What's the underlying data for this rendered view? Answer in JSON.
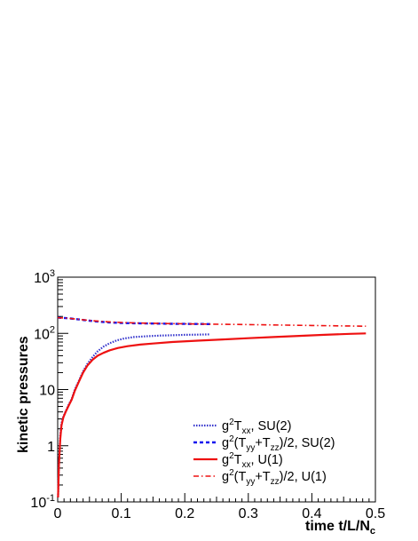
{
  "chart_data": {
    "type": "line",
    "xlabel": "time t/L/N",
    "xlabel_sub": "c",
    "ylabel": "kinetic pressures",
    "xlim": [
      0,
      0.5
    ],
    "ylim": [
      0.1,
      1000
    ],
    "y_scale": "log",
    "x_ticks": [
      {
        "value": 0,
        "label": "0"
      },
      {
        "value": 0.1,
        "label": "0.1"
      },
      {
        "value": 0.2,
        "label": "0.2"
      },
      {
        "value": 0.3,
        "label": "0.3"
      },
      {
        "value": 0.4,
        "label": "0.4"
      },
      {
        "value": 0.5,
        "label": "0.5"
      }
    ],
    "y_ticks": [
      {
        "value": 0.1,
        "label": "10",
        "exp": "-1"
      },
      {
        "value": 1,
        "label": "1",
        "exp": ""
      },
      {
        "value": 10,
        "label": "10",
        "exp": ""
      },
      {
        "value": 100,
        "label": "10",
        "exp": "2"
      },
      {
        "value": 1000,
        "label": "10",
        "exp": "3"
      }
    ],
    "grid": false,
    "legend_position": "bottom-right",
    "series": [
      {
        "name": "g²T_xx, SU(2)",
        "color": "#3333cc",
        "dash": "1.5,1.5",
        "width": 2.2,
        "x": [
          0.0005,
          0.002,
          0.004,
          0.006,
          0.009,
          0.013,
          0.017,
          0.022,
          0.027,
          0.033,
          0.04,
          0.047,
          0.055,
          0.063,
          0.072,
          0.082,
          0.093,
          0.105,
          0.12,
          0.14,
          0.16,
          0.18,
          0.2,
          0.22,
          0.24
        ],
        "y": [
          0.12,
          0.5,
          1.5,
          2.5,
          3.3,
          4.2,
          5.3,
          6.8,
          10,
          14,
          21,
          29,
          38,
          48,
          58,
          67,
          75,
          81,
          86,
          89,
          91,
          92.5,
          94,
          95,
          96
        ]
      },
      {
        "name": "g²(T_yy+T_zz)/2, SU(2)",
        "color": "#1515ee",
        "dash": "4,3",
        "width": 2.4,
        "x": [
          0,
          0.01,
          0.02,
          0.03,
          0.04,
          0.05,
          0.06,
          0.08,
          0.1,
          0.12,
          0.14,
          0.16,
          0.18,
          0.2,
          0.22,
          0.24
        ],
        "y": [
          190,
          188,
          184,
          179,
          173,
          168,
          163,
          157,
          153,
          151,
          150,
          149,
          148,
          147.5,
          147,
          146.5
        ]
      },
      {
        "name": "g²T_xx, U(1)",
        "color": "#ee1111",
        "dash": "",
        "width": 2.2,
        "x": [
          0.0005,
          0.002,
          0.004,
          0.006,
          0.009,
          0.013,
          0.017,
          0.022,
          0.027,
          0.033,
          0.04,
          0.047,
          0.055,
          0.063,
          0.072,
          0.082,
          0.095,
          0.11,
          0.13,
          0.15,
          0.18,
          0.22,
          0.26,
          0.3,
          0.34,
          0.38,
          0.42,
          0.46,
          0.485
        ],
        "y": [
          0.12,
          0.45,
          1.3,
          2.3,
          3.2,
          4.1,
          5.1,
          6.6,
          9.5,
          13.5,
          20,
          27,
          34,
          40,
          45,
          50,
          55,
          59,
          63,
          66,
          70,
          74,
          78,
          82,
          86,
          90,
          94,
          98,
          100
        ]
      },
      {
        "name": "g²(T_yy+T_zz)/2, U(1)",
        "color": "#ee1111",
        "dash": "6,3,1.5,3",
        "width": 1.6,
        "x": [
          0,
          0.02,
          0.04,
          0.06,
          0.08,
          0.1,
          0.13,
          0.16,
          0.2,
          0.24,
          0.28,
          0.32,
          0.36,
          0.4,
          0.44,
          0.485
        ],
        "y": [
          190,
          184,
          174,
          166,
          160,
          156,
          152,
          150,
          148,
          146,
          144,
          142,
          140,
          138,
          136,
          134
        ]
      }
    ]
  },
  "legend": [
    {
      "pre": "g",
      "sup1": "2",
      "mid": "T",
      "sub1": "xx",
      "post": ", SU(2)"
    },
    {
      "pre": "g",
      "sup1": "2",
      "mid": "(T",
      "sub1": "yy",
      "mid2": "+T",
      "sub2": "zz",
      "post": ")/2, SU(2)"
    },
    {
      "pre": "g",
      "sup1": "2",
      "mid": "T",
      "sub1": "xx",
      "post": ", U(1)"
    },
    {
      "pre": "g",
      "sup1": "2",
      "mid": "(T",
      "sub1": "yy",
      "mid2": "+T",
      "sub2": "zz",
      "post": ")/2, U(1)"
    }
  ]
}
